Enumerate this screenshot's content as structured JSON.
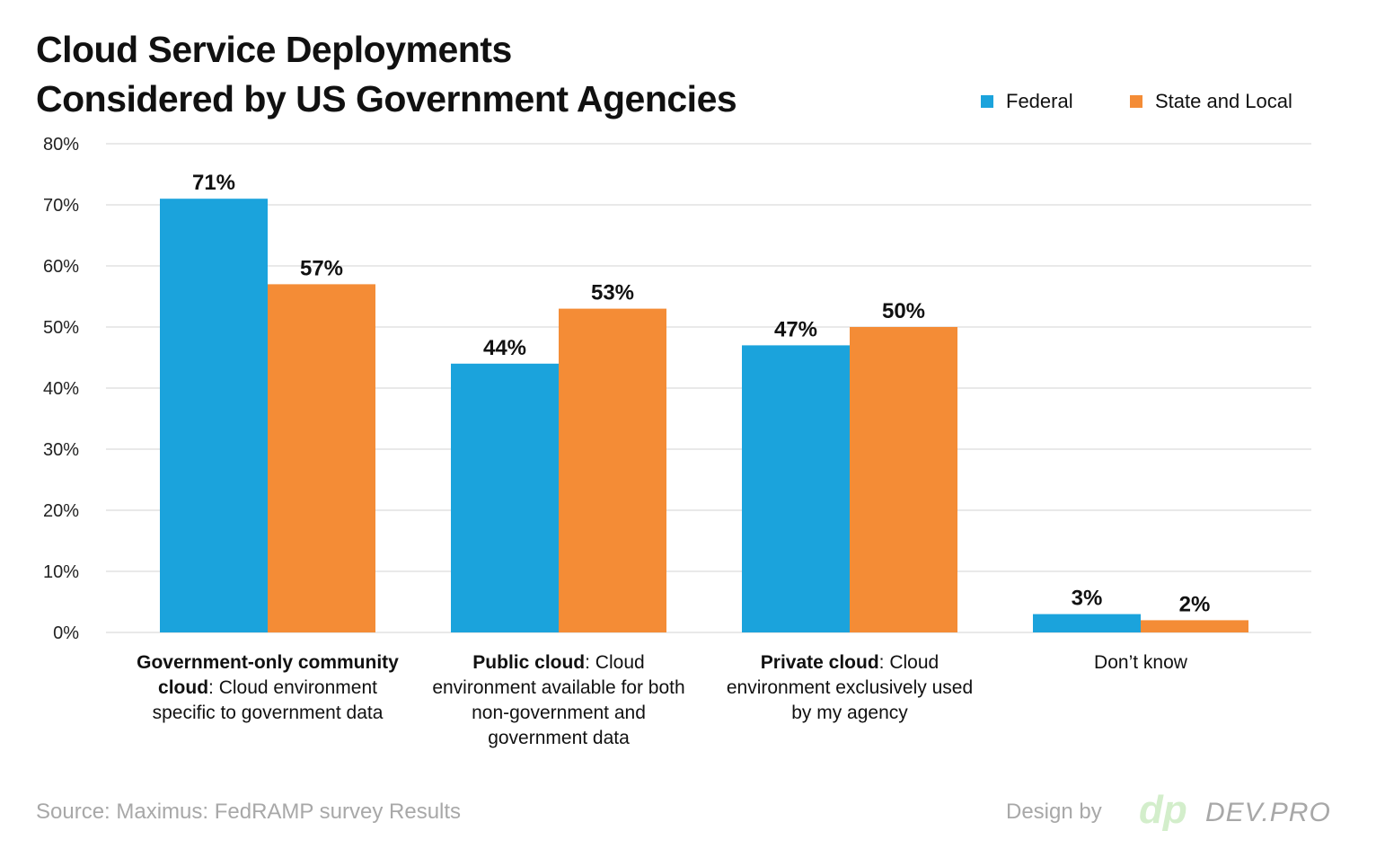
{
  "chart_data": {
    "type": "bar",
    "title": "Cloud Service Deployments\nConsidered by US Government Agencies",
    "title_lines": [
      "Cloud Service Deployments",
      "Considered by US Government Agencies"
    ],
    "categories": [
      {
        "bold": "Government-only community cloud",
        "rest": ": Cloud environment specific to government data"
      },
      {
        "bold": "Public cloud",
        "rest": ": Cloud environment available for both non-government and government data"
      },
      {
        "bold": "Private cloud",
        "rest": ": Cloud environment exclusively used by my agency"
      },
      {
        "bold": "",
        "rest": "Don’t know"
      }
    ],
    "series": [
      {
        "name": "Federal",
        "color": "#1ba3dc",
        "values": [
          71,
          44,
          47,
          3
        ],
        "labels": [
          "71%",
          "44%",
          "47%",
          "3%"
        ]
      },
      {
        "name": "State and Local",
        "color": "#f48c36",
        "values": [
          57,
          53,
          50,
          2
        ],
        "labels": [
          "57%",
          "53%",
          "50%",
          "2%"
        ]
      }
    ],
    "ylim": [
      0,
      80
    ],
    "yticks": [
      "0%",
      "10%",
      "20%",
      "30%",
      "40%",
      "50%",
      "60%",
      "70%",
      "80%"
    ],
    "grid": true,
    "legend_position": "top-right"
  },
  "footer": {
    "source": "Source: Maximus: FedRAMP survey Results",
    "design_by": "Design by",
    "logo_mark": "dp",
    "logo_text": "DEV.PRO"
  }
}
